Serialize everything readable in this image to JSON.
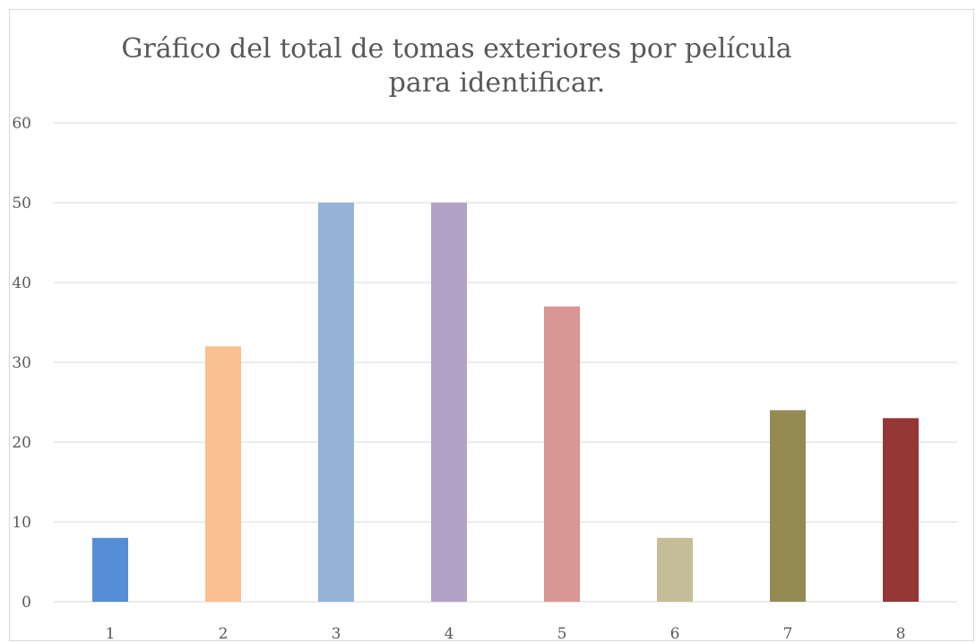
{
  "chart_data": {
    "type": "bar",
    "title_lines": [
      "Gráfico del total de tomas exteriores  por película",
      "para identificar."
    ],
    "categories": [
      "1",
      "2",
      "3",
      "4",
      "5",
      "6",
      "7",
      "8"
    ],
    "values": [
      8,
      32,
      50,
      50,
      37,
      8,
      24,
      23
    ],
    "colors": [
      "#558ed5",
      "#fac090",
      "#95b3d7",
      "#b3a2c7",
      "#d99694",
      "#c4bd97",
      "#948a54",
      "#953735"
    ],
    "ylim": [
      0,
      60
    ],
    "yticks": [
      "0",
      "10",
      "20",
      "30",
      "40",
      "50",
      "60"
    ],
    "grid": true,
    "legend": "none",
    "xlabel": "",
    "ylabel": ""
  }
}
